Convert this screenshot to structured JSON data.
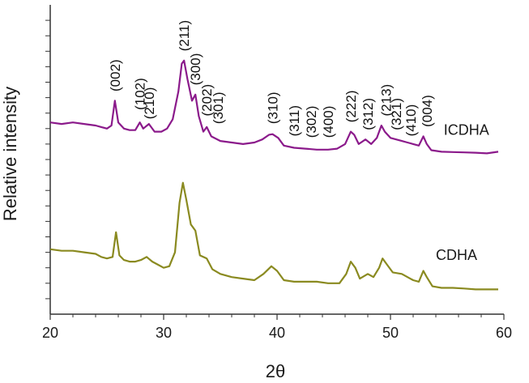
{
  "chart_data": {
    "type": "line",
    "xlabel": "2θ",
    "ylabel": "Relative intensity",
    "xlim": [
      20,
      60
    ],
    "ylim": [
      0,
      100
    ],
    "x_ticks": [
      20,
      30,
      40,
      50,
      60
    ],
    "grid": false,
    "colors": {
      "ICDHA": "#8b1a8b",
      "CDHA": "#8a8a20",
      "axis": "#333333"
    },
    "series": [
      {
        "name": "ICDHA",
        "points": [
          [
            20,
            62
          ],
          [
            21,
            61.5
          ],
          [
            22,
            62
          ],
          [
            23,
            61.5
          ],
          [
            24,
            61
          ],
          [
            24.5,
            60.5
          ],
          [
            25,
            60
          ],
          [
            25.4,
            61
          ],
          [
            25.7,
            69
          ],
          [
            26,
            62
          ],
          [
            26.5,
            60
          ],
          [
            27,
            59.5
          ],
          [
            27.5,
            59.5
          ],
          [
            27.9,
            62
          ],
          [
            28.2,
            60
          ],
          [
            28.7,
            61.5
          ],
          [
            29.2,
            59
          ],
          [
            29.8,
            59
          ],
          [
            30.3,
            60
          ],
          [
            30.8,
            63
          ],
          [
            31.3,
            72
          ],
          [
            31.6,
            81
          ],
          [
            31.8,
            82
          ],
          [
            32.1,
            76
          ],
          [
            32.5,
            69
          ],
          [
            32.8,
            71
          ],
          [
            33.1,
            64
          ],
          [
            33.5,
            59
          ],
          [
            33.8,
            60.5
          ],
          [
            34.2,
            57.5
          ],
          [
            35,
            56
          ],
          [
            36,
            55.5
          ],
          [
            37,
            55
          ],
          [
            38,
            55.5
          ],
          [
            38.7,
            56.5
          ],
          [
            39.3,
            58
          ],
          [
            39.6,
            58.2
          ],
          [
            40.1,
            57
          ],
          [
            40.6,
            54.5
          ],
          [
            41.5,
            53.8
          ],
          [
            42.5,
            53.5
          ],
          [
            43.5,
            53.2
          ],
          [
            44.5,
            53.2
          ],
          [
            45.3,
            53.5
          ],
          [
            46,
            55
          ],
          [
            46.5,
            59
          ],
          [
            46.8,
            58
          ],
          [
            47.2,
            55
          ],
          [
            47.8,
            56.5
          ],
          [
            48.3,
            55
          ],
          [
            48.8,
            57
          ],
          [
            49.2,
            61
          ],
          [
            49.5,
            59
          ],
          [
            50,
            57
          ],
          [
            50.5,
            56.5
          ],
          [
            51,
            56
          ],
          [
            51.5,
            55.5
          ],
          [
            52,
            55
          ],
          [
            52.5,
            54.5
          ],
          [
            52.9,
            57.5
          ],
          [
            53.2,
            55
          ],
          [
            53.6,
            53
          ],
          [
            54.5,
            52.5
          ],
          [
            55.5,
            52.4
          ],
          [
            56.5,
            52.3
          ],
          [
            57.5,
            52.2
          ],
          [
            58.5,
            52
          ],
          [
            59.5,
            52.5
          ]
        ]
      },
      {
        "name": "CDHA",
        "points": [
          [
            20,
            21
          ],
          [
            21,
            20.5
          ],
          [
            22,
            20.5
          ],
          [
            23,
            20
          ],
          [
            24,
            19.5
          ],
          [
            24.5,
            18.5
          ],
          [
            25,
            18
          ],
          [
            25.5,
            18.5
          ],
          [
            25.8,
            26.5
          ],
          [
            26.1,
            19
          ],
          [
            26.5,
            17.5
          ],
          [
            27,
            17
          ],
          [
            27.5,
            17
          ],
          [
            28,
            17.5
          ],
          [
            28.5,
            18.5
          ],
          [
            29,
            17
          ],
          [
            29.5,
            16
          ],
          [
            30,
            15
          ],
          [
            30.5,
            15.5
          ],
          [
            31,
            20
          ],
          [
            31.4,
            36
          ],
          [
            31.7,
            42.5
          ],
          [
            32,
            37
          ],
          [
            32.4,
            29
          ],
          [
            32.8,
            27
          ],
          [
            33.2,
            19
          ],
          [
            33.8,
            18
          ],
          [
            34.3,
            14.5
          ],
          [
            35,
            13
          ],
          [
            36,
            12
          ],
          [
            37,
            11.5
          ],
          [
            38,
            11
          ],
          [
            38.8,
            13
          ],
          [
            39.5,
            15.5
          ],
          [
            40,
            14
          ],
          [
            40.6,
            11
          ],
          [
            41.5,
            10.5
          ],
          [
            42.5,
            10.5
          ],
          [
            43.5,
            10.5
          ],
          [
            44.5,
            10
          ],
          [
            45.5,
            10
          ],
          [
            46.1,
            13
          ],
          [
            46.5,
            17
          ],
          [
            46.9,
            15
          ],
          [
            47.3,
            11.5
          ],
          [
            48,
            13
          ],
          [
            48.5,
            12
          ],
          [
            49,
            15
          ],
          [
            49.3,
            18
          ],
          [
            49.7,
            16
          ],
          [
            50.2,
            13.5
          ],
          [
            51,
            13
          ],
          [
            51.5,
            12
          ],
          [
            52,
            11
          ],
          [
            52.5,
            10.5
          ],
          [
            52.9,
            14
          ],
          [
            53.2,
            12
          ],
          [
            53.7,
            9
          ],
          [
            54.5,
            8.5
          ],
          [
            55.5,
            8.5
          ],
          [
            56.5,
            8.3
          ],
          [
            57.5,
            8
          ],
          [
            58.5,
            8
          ],
          [
            59.5,
            8
          ]
        ]
      }
    ],
    "series_labels": [
      {
        "text": "ICDHA",
        "x": 54.7,
        "y": 58
      },
      {
        "text": "CDHA",
        "x": 54,
        "y": 17.5
      }
    ],
    "annotations": [
      {
        "text": "(002)",
        "x": 25.7,
        "y": 72
      },
      {
        "text": "(102)",
        "x": 27.9,
        "y": 66
      },
      {
        "text": "(210)",
        "x": 28.7,
        "y": 63
      },
      {
        "text": "(211)",
        "x": 31.8,
        "y": 85
      },
      {
        "text": "(300)",
        "x": 32.8,
        "y": 74
      },
      {
        "text": "(202)",
        "x": 33.8,
        "y": 64
      },
      {
        "text": "(301)",
        "x": 34.8,
        "y": 61.5
      },
      {
        "text": "(310)",
        "x": 39.6,
        "y": 61.5
      },
      {
        "text": "(311)",
        "x": 41.5,
        "y": 57.5
      },
      {
        "text": "(302)",
        "x": 43.0,
        "y": 57
      },
      {
        "text": "(400)",
        "x": 44.5,
        "y": 57
      },
      {
        "text": "(222)",
        "x": 46.5,
        "y": 62
      },
      {
        "text": "(312)",
        "x": 48.0,
        "y": 59.5
      },
      {
        "text": "(213)",
        "x": 49.6,
        "y": 64
      },
      {
        "text": "(321)",
        "x": 50.5,
        "y": 59.5
      },
      {
        "text": "(410)",
        "x": 51.8,
        "y": 57.5
      },
      {
        "text": "(004)",
        "x": 53.2,
        "y": 60.5
      }
    ]
  }
}
